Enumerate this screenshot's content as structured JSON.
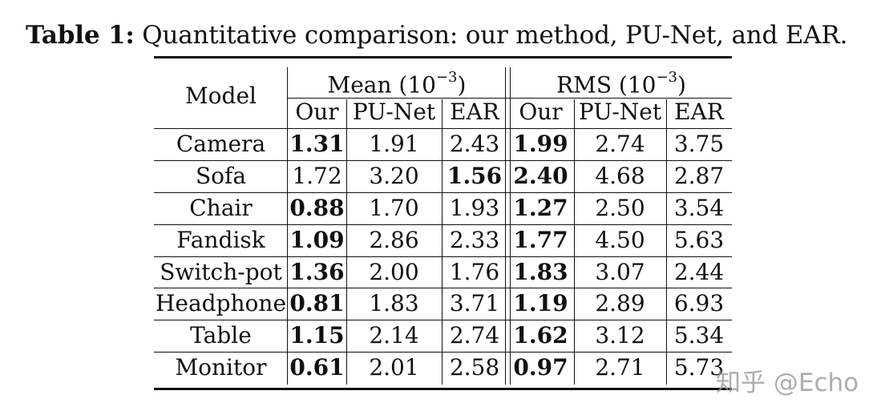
{
  "caption": {
    "label": "Table 1:",
    "text": "Quantitative comparison: our method, PU-Net, and EAR."
  },
  "header": {
    "model": "Model",
    "mean_prefix": "Mean (10",
    "mean_exp": "−3",
    "mean_suffix": ")",
    "rms_prefix": "RMS (10",
    "rms_exp": "−3",
    "rms_suffix": ")",
    "methods": [
      "Our",
      "PU-Net",
      "EAR",
      "Our",
      "PU-Net",
      "EAR"
    ]
  },
  "rows": [
    {
      "model": "Camera",
      "values": [
        "1.31",
        "1.91",
        "2.43",
        "1.99",
        "2.74",
        "3.75"
      ],
      "bold": [
        0,
        3
      ]
    },
    {
      "model": "Sofa",
      "values": [
        "1.72",
        "3.20",
        "1.56",
        "2.40",
        "4.68",
        "2.87"
      ],
      "bold": [
        2,
        3
      ]
    },
    {
      "model": "Chair",
      "values": [
        "0.88",
        "1.70",
        "1.93",
        "1.27",
        "2.50",
        "3.54"
      ],
      "bold": [
        0,
        3
      ]
    },
    {
      "model": "Fandisk",
      "values": [
        "1.09",
        "2.86",
        "2.33",
        "1.77",
        "4.50",
        "5.63"
      ],
      "bold": [
        0,
        3
      ]
    },
    {
      "model": "Switch-pot",
      "values": [
        "1.36",
        "2.00",
        "1.76",
        "1.83",
        "3.07",
        "2.44"
      ],
      "bold": [
        0,
        3
      ]
    },
    {
      "model": "Headphone",
      "values": [
        "0.81",
        "1.83",
        "3.71",
        "1.19",
        "2.89",
        "6.93"
      ],
      "bold": [
        0,
        3
      ]
    },
    {
      "model": "Table",
      "values": [
        "1.15",
        "2.14",
        "2.74",
        "1.62",
        "3.12",
        "5.34"
      ],
      "bold": [
        0,
        3
      ]
    },
    {
      "model": "Monitor",
      "values": [
        "0.61",
        "2.01",
        "2.58",
        "0.97",
        "2.71",
        "5.73"
      ],
      "bold": [
        0,
        3
      ]
    }
  ],
  "watermark": "知乎 @Echo"
}
